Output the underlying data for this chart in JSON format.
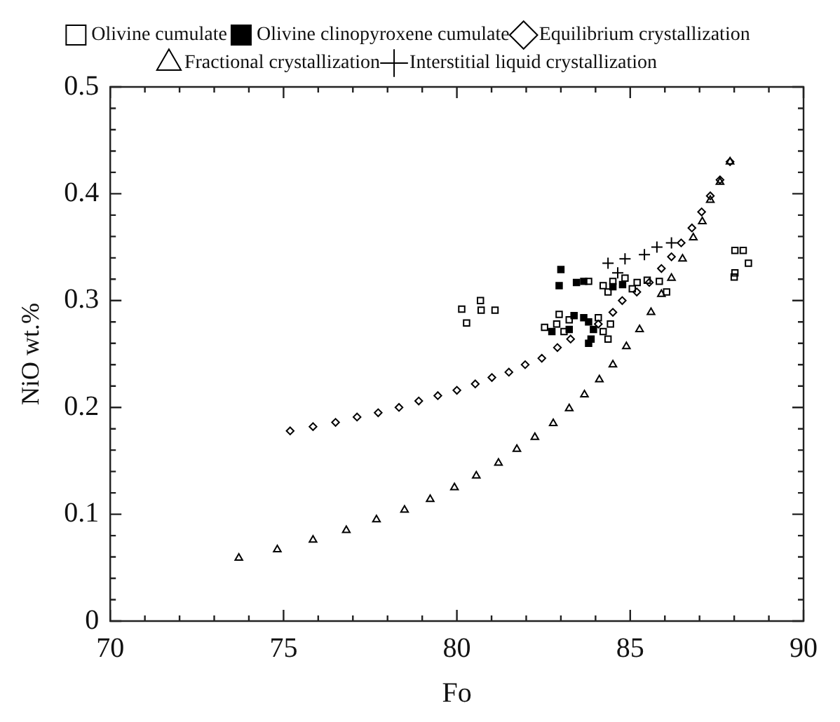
{
  "chart_data": {
    "type": "scatter",
    "xlabel": "Fo",
    "ylabel": "NiO wt.%",
    "xlim": [
      70,
      90
    ],
    "ylim": [
      0,
      0.5
    ],
    "xticks": [
      70,
      {
        "value": 71,
        "label": null
      },
      {
        "value": 72,
        "label": null
      },
      {
        "value": 73,
        "label": null
      },
      {
        "value": 74,
        "label": null
      },
      75,
      {
        "value": 76,
        "label": null
      },
      {
        "value": 77,
        "label": null
      },
      {
        "value": 78,
        "label": null
      },
      {
        "value": 79,
        "label": null
      },
      80,
      {
        "value": 81,
        "label": null
      },
      {
        "value": 82,
        "label": null
      },
      {
        "value": 83,
        "label": null
      },
      {
        "value": 84,
        "label": null
      },
      85,
      {
        "value": 86,
        "label": null
      },
      {
        "value": 87,
        "label": null
      },
      {
        "value": 88,
        "label": null
      },
      {
        "value": 89,
        "label": null
      },
      90
    ],
    "yticks": [
      0,
      {
        "value": 0.02,
        "label": null
      },
      {
        "value": 0.04,
        "label": null
      },
      {
        "value": 0.06,
        "label": null
      },
      {
        "value": 0.08,
        "label": null
      },
      0.1,
      {
        "value": 0.12,
        "label": null
      },
      {
        "value": 0.14,
        "label": null
      },
      {
        "value": 0.16,
        "label": null
      },
      {
        "value": 0.18,
        "label": null
      },
      0.2,
      {
        "value": 0.22,
        "label": null
      },
      {
        "value": 0.24,
        "label": null
      },
      {
        "value": 0.26,
        "label": null
      },
      {
        "value": 0.28,
        "label": null
      },
      0.3,
      {
        "value": 0.32,
        "label": null
      },
      {
        "value": 0.34,
        "label": null
      },
      {
        "value": 0.36,
        "label": null
      },
      {
        "value": 0.38,
        "label": null
      },
      0.4,
      {
        "value": 0.42,
        "label": null
      },
      {
        "value": 0.44,
        "label": null
      },
      {
        "value": 0.46,
        "label": null
      },
      {
        "value": 0.48,
        "label": null
      },
      0.5
    ],
    "legend": "top",
    "series": [
      {
        "name": "Olivine cumulate",
        "color": "#000000",
        "marker": "square",
        "x": [
          80.14,
          80.28,
          80.68,
          80.7,
          81.1,
          88.02,
          88.26,
          88.02,
          88.41,
          88.0,
          82.53,
          82.95,
          82.88,
          83.09,
          84.08,
          84.22,
          84.36,
          84.43,
          83.24,
          83.8,
          84.22,
          84.5,
          84.85,
          85.2,
          85.49,
          85.84,
          86.05,
          84.36,
          85.06
        ],
        "values": [
          0.292,
          0.279,
          0.3,
          0.291,
          0.291,
          0.347,
          0.347,
          0.326,
          0.335,
          0.322,
          0.275,
          0.287,
          0.278,
          0.271,
          0.284,
          0.271,
          0.264,
          0.278,
          0.282,
          0.318,
          0.314,
          0.318,
          0.321,
          0.317,
          0.319,
          0.318,
          0.308,
          0.308,
          0.311
        ]
      },
      {
        "name": "Olivine clinopyroxene cumulate",
        "color": "#000000",
        "marker": "square",
        "x": [
          83.0,
          82.95,
          83.45,
          83.66,
          83.38,
          83.66,
          83.8,
          83.94,
          83.87,
          82.74,
          83.24,
          84.5,
          84.78,
          83.8
        ],
        "values": [
          0.329,
          0.314,
          0.317,
          0.318,
          0.286,
          0.284,
          0.28,
          0.273,
          0.264,
          0.271,
          0.273,
          0.313,
          0.315,
          0.26
        ]
      },
      {
        "name": "Equilibrium crystallization",
        "color": "#000000",
        "marker": "diamond",
        "x": [
          75.19,
          75.85,
          76.5,
          77.12,
          77.73,
          78.33,
          78.9,
          79.45,
          80.0,
          80.53,
          81.01,
          81.5,
          81.97,
          82.45,
          82.9,
          83.28,
          84.08,
          84.5,
          84.77,
          85.19,
          85.55,
          85.9,
          86.19,
          86.47,
          86.78,
          87.06,
          87.31,
          87.59,
          87.88
        ],
        "values": [
          0.178,
          0.182,
          0.186,
          0.191,
          0.195,
          0.2,
          0.206,
          0.211,
          0.216,
          0.222,
          0.228,
          0.233,
          0.24,
          0.246,
          0.256,
          0.264,
          0.278,
          0.289,
          0.3,
          0.308,
          0.317,
          0.33,
          0.341,
          0.354,
          0.368,
          0.383,
          0.398,
          0.413,
          0.43
        ]
      },
      {
        "name": "Fractional crystallization",
        "color": "#000000",
        "marker": "triangle",
        "x": [
          73.71,
          74.82,
          75.85,
          76.81,
          77.68,
          78.49,
          79.23,
          79.93,
          80.56,
          81.2,
          81.73,
          82.25,
          82.78,
          83.24,
          83.68,
          84.11,
          84.5,
          84.89,
          85.27,
          85.6,
          85.9,
          86.19,
          86.51,
          86.82,
          87.08,
          87.31,
          87.59,
          87.88
        ],
        "values": [
          0.059,
          0.067,
          0.076,
          0.085,
          0.095,
          0.104,
          0.114,
          0.125,
          0.136,
          0.148,
          0.161,
          0.172,
          0.185,
          0.199,
          0.212,
          0.226,
          0.24,
          0.257,
          0.273,
          0.289,
          0.306,
          0.321,
          0.339,
          0.359,
          0.374,
          0.394,
          0.411,
          0.43
        ]
      },
      {
        "name": "Interstitial liquid crystallization",
        "color": "#000000",
        "marker": "cross",
        "x": [
          84.36,
          84.85,
          85.77,
          86.19,
          85.41,
          84.64
        ],
        "values": [
          0.335,
          0.339,
          0.35,
          0.354,
          0.343,
          0.326
        ]
      }
    ]
  }
}
